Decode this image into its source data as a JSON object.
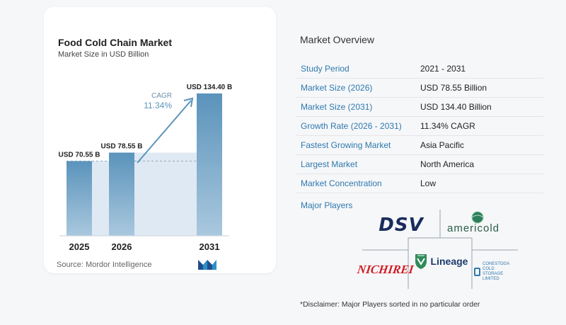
{
  "chart_data": {
    "type": "bar",
    "title": "Food Cold Chain Market",
    "subtitle": "Market Size in USD Billion",
    "categories": [
      "2025",
      "2026",
      "2031"
    ],
    "values": [
      70.55,
      78.55,
      134.4
    ],
    "data_labels": [
      "USD 70.55 B",
      "USD 78.55 B",
      "USD 134.40 B"
    ],
    "cagr_label": "CAGR",
    "cagr_value": "11.34%",
    "ylim": [
      0,
      134.4
    ],
    "grid": false,
    "colors": {
      "bar": "#5b93bb",
      "bar_light": "#a9c8de",
      "shade": "#dfe9f3",
      "arrow": "#5b93bb",
      "cagr_text": "#5b93bb"
    }
  },
  "source": "Source: Mordor Intelligence",
  "overview": {
    "title": "Market Overview",
    "rows": [
      {
        "label": "Study Period",
        "value": "2021 - 2031"
      },
      {
        "label": "Market Size (2026)",
        "value": "USD 78.55 Billion"
      },
      {
        "label": "Market Size (2031)",
        "value": "USD 134.40 Billion"
      },
      {
        "label": "Growth Rate (2026 - 2031)",
        "value": "11.34% CAGR"
      },
      {
        "label": "Fastest Growing Market",
        "value": "Asia Pacific"
      },
      {
        "label": "Largest Market",
        "value": "North America"
      },
      {
        "label": "Market Concentration",
        "value": "Low"
      }
    ]
  },
  "players": {
    "label": "Major Players",
    "logos": [
      {
        "name": "DSV",
        "text": "DSV"
      },
      {
        "name": "Americold",
        "text": "americold"
      },
      {
        "name": "Nichirei",
        "text": "NICHIREI"
      },
      {
        "name": "Lineage",
        "text": "Lineage"
      },
      {
        "name": "Conestoga Cold Storage",
        "text": "CONESTOGA COLD STORAGE LIMITED"
      }
    ]
  },
  "disclaimer": "*Disclaimer: Major Players sorted in no particular order",
  "icons": {
    "brand": "mordor-logo-icon"
  }
}
